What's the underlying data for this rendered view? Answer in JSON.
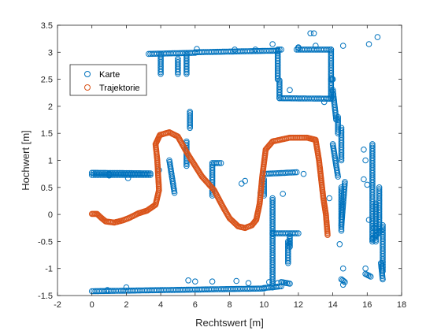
{
  "chart_data": {
    "type": "scatter",
    "title": "",
    "xlabel": "Rechtswert [m]",
    "ylabel": "Hochwert [m]",
    "xlim": [
      -2,
      18
    ],
    "ylim": [
      -1.5,
      3.5
    ],
    "xticks": [
      "-2",
      "0",
      "2",
      "4",
      "6",
      "8",
      "10",
      "12",
      "14",
      "16",
      "18"
    ],
    "yticks": [
      "-1.5",
      "-1",
      "-0.5",
      "0",
      "0.5",
      "1",
      "1.5",
      "2",
      "2.5",
      "3",
      "3.5"
    ],
    "grid": false,
    "legend": {
      "placement": "upper-left",
      "entries": [
        "Karte",
        "Trajektorie"
      ]
    },
    "colors": {
      "karte": "#0072BD",
      "trajektorie": "#D95319"
    },
    "series": [
      {
        "name": "Karte",
        "marker": "open-circle",
        "segments": [
          {
            "from": [
              3.3,
              2.97
            ],
            "to": [
              6.0,
              2.99
            ]
          },
          {
            "from": [
              6.0,
              3.0
            ],
            "to": [
              10.8,
              3.03
            ]
          },
          {
            "from": [
              4.0,
              2.97
            ],
            "to": [
              4.0,
              2.6
            ]
          },
          {
            "from": [
              5.0,
              2.88
            ],
            "to": [
              5.0,
              2.6
            ]
          },
          {
            "from": [
              5.5,
              2.96
            ],
            "to": [
              5.5,
              2.6
            ]
          },
          {
            "from": [
              10.8,
              3.02
            ],
            "to": [
              10.8,
              2.5
            ]
          },
          {
            "from": [
              11.0,
              3.05
            ],
            "to": [
              10.8,
              3.05
            ]
          },
          {
            "from": [
              10.9,
              2.48
            ],
            "to": [
              10.9,
              2.15
            ]
          },
          {
            "from": [
              10.9,
              2.15
            ],
            "to": [
              14.0,
              2.14
            ]
          },
          {
            "from": [
              12.0,
              3.09
            ],
            "to": [
              12.0,
              3.08
            ]
          },
          {
            "from": [
              11.9,
              3.05
            ],
            "to": [
              13.9,
              3.05
            ]
          },
          {
            "from": [
              13.9,
              3.05
            ],
            "to": [
              13.9,
              2.15
            ]
          },
          {
            "from": [
              13.9,
              2.5
            ],
            "to": [
              14.0,
              2.5
            ]
          },
          {
            "from": [
              14.0,
              2.3
            ],
            "to": [
              14.2,
              1.75
            ]
          },
          {
            "from": [
              14.3,
              1.8
            ],
            "to": [
              14.3,
              1.5
            ]
          },
          {
            "from": [
              14.5,
              1.6
            ],
            "to": [
              14.5,
              1.0
            ]
          },
          {
            "from": [
              14.0,
              1.3
            ],
            "to": [
              14.3,
              0.7
            ]
          },
          {
            "from": [
              14.5,
              0.5
            ],
            "to": [
              14.5,
              -0.3
            ]
          },
          {
            "from": [
              14.7,
              0.6
            ],
            "to": [
              14.5,
              -0.2
            ]
          },
          {
            "from": [
              0.0,
              0.77
            ],
            "to": [
              3.4,
              0.76
            ]
          },
          {
            "from": [
              0.0,
              0.73
            ],
            "to": [
              3.4,
              0.73
            ]
          },
          {
            "from": [
              1.0,
              0.75
            ],
            "to": [
              1.0,
              0.72
            ]
          },
          {
            "from": [
              4.5,
              1.0
            ],
            "to": [
              4.8,
              0.4
            ]
          },
          {
            "from": [
              5.5,
              1.35
            ],
            "to": [
              5.5,
              0.9
            ]
          },
          {
            "from": [
              5.7,
              1.9
            ],
            "to": [
              5.7,
              1.6
            ]
          },
          {
            "from": [
              7.0,
              0.95
            ],
            "to": [
              7.0,
              0.35
            ]
          },
          {
            "from": [
              7.1,
              0.95
            ],
            "to": [
              7.5,
              0.95
            ]
          },
          {
            "from": [
              10.0,
              0.65
            ],
            "to": [
              10.0,
              0.35
            ]
          },
          {
            "from": [
              10.0,
              0.75
            ],
            "to": [
              11.9,
              0.78
            ]
          },
          {
            "from": [
              10.5,
              0.3
            ],
            "to": [
              10.5,
              -1.35
            ]
          },
          {
            "from": [
              10.5,
              -0.35
            ],
            "to": [
              12.0,
              -0.35
            ]
          },
          {
            "from": [
              11.4,
              -0.5
            ],
            "to": [
              11.4,
              -0.9
            ]
          },
          {
            "from": [
              11.5,
              -0.4
            ],
            "to": [
              11.5,
              -0.6
            ]
          },
          {
            "from": [
              0.0,
              -1.42
            ],
            "to": [
              10.0,
              -1.37
            ]
          },
          {
            "from": [
              10.0,
              -1.36
            ],
            "to": [
              11.0,
              -1.33
            ]
          },
          {
            "from": [
              11.0,
              -1.25
            ],
            "to": [
              11.5,
              -1.28
            ]
          },
          {
            "from": [
              14.5,
              -1.2
            ],
            "to": [
              14.7,
              -1.25
            ]
          },
          {
            "from": [
              15.9,
              -1.1
            ],
            "to": [
              16.2,
              -1.15
            ]
          },
          {
            "from": [
              16.3,
              1.3
            ],
            "to": [
              16.3,
              -0.5
            ]
          },
          {
            "from": [
              16.5,
              0.2
            ],
            "to": [
              16.5,
              -0.5
            ]
          },
          {
            "from": [
              16.7,
              0.5
            ],
            "to": [
              16.7,
              -0.3
            ]
          },
          {
            "from": [
              16.9,
              -0.2
            ],
            "to": [
              16.9,
              -1.05
            ]
          },
          {
            "from": [
              16.3,
              -0.45
            ],
            "to": [
              16.8,
              -0.3
            ]
          },
          {
            "from": [
              16.8,
              -0.9
            ],
            "to": [
              16.9,
              -1.2
            ]
          }
        ],
        "points": [
          [
            6.1,
            3.06
          ],
          [
            8.3,
            3.05
          ],
          [
            9.5,
            3.05
          ],
          [
            10.5,
            3.15
          ],
          [
            12.7,
            3.35
          ],
          [
            12.9,
            3.35
          ],
          [
            13.0,
            3.12
          ],
          [
            10.8,
            2.5
          ],
          [
            11.5,
            2.3
          ],
          [
            13.5,
            2.08
          ],
          [
            14.6,
            3.12
          ],
          [
            16.1,
            3.15
          ],
          [
            16.6,
            3.28
          ],
          [
            15.8,
            1.2
          ],
          [
            15.9,
            1.0
          ],
          [
            15.8,
            0.65
          ],
          [
            16.0,
            0.55
          ],
          [
            13.8,
            0.3
          ],
          [
            14.4,
            -0.55
          ],
          [
            14.6,
            -1.0
          ],
          [
            14.6,
            -1.3
          ],
          [
            16.1,
            -0.1
          ],
          [
            16.4,
            -0.25
          ],
          [
            15.9,
            -1.0
          ],
          [
            9.8,
            0.4
          ],
          [
            8.7,
            0.57
          ],
          [
            8.9,
            0.62
          ],
          [
            6.0,
            -1.24
          ],
          [
            5.6,
            -1.22
          ],
          [
            7.0,
            -1.24
          ],
          [
            8.4,
            -1.23
          ],
          [
            9.1,
            -1.27
          ],
          [
            10.3,
            -1.25
          ],
          [
            10.8,
            -1.27
          ],
          [
            2.0,
            -1.35
          ],
          [
            3.9,
            0.82
          ],
          [
            2.1,
            0.67
          ],
          [
            11.1,
            0.38
          ],
          [
            12.3,
            0.75
          ],
          [
            0.9,
            -1.4
          ]
        ]
      },
      {
        "name": "Trajektorie",
        "marker": "open-circle",
        "points": [
          [
            0.0,
            0.01
          ],
          [
            0.3,
            0.01
          ],
          [
            0.5,
            -0.05
          ],
          [
            0.8,
            -0.13
          ],
          [
            1.3,
            -0.15
          ],
          [
            1.8,
            -0.11
          ],
          [
            2.2,
            -0.06
          ],
          [
            2.7,
            0.02
          ],
          [
            3.2,
            0.07
          ],
          [
            3.7,
            0.18
          ],
          [
            3.9,
            0.45
          ],
          [
            3.8,
            1.0
          ],
          [
            3.7,
            1.3
          ],
          [
            3.95,
            1.47
          ],
          [
            4.5,
            1.52
          ],
          [
            5.0,
            1.44
          ],
          [
            5.6,
            1.1
          ],
          [
            6.4,
            0.7
          ],
          [
            7.1,
            0.45
          ],
          [
            7.6,
            0.15
          ],
          [
            8.0,
            -0.07
          ],
          [
            8.5,
            -0.22
          ],
          [
            8.9,
            -0.25
          ],
          [
            9.3,
            -0.2
          ],
          [
            9.55,
            -0.1
          ],
          [
            9.75,
            0.2
          ],
          [
            9.9,
            0.7
          ],
          [
            10.1,
            1.2
          ],
          [
            10.5,
            1.35
          ],
          [
            11.5,
            1.42
          ],
          [
            12.5,
            1.42
          ],
          [
            13.0,
            1.38
          ],
          [
            13.2,
            1.0
          ],
          [
            13.45,
            0.3
          ],
          [
            13.6,
            0.0
          ],
          [
            13.65,
            -0.2
          ],
          [
            13.7,
            -0.38
          ]
        ]
      }
    ]
  }
}
